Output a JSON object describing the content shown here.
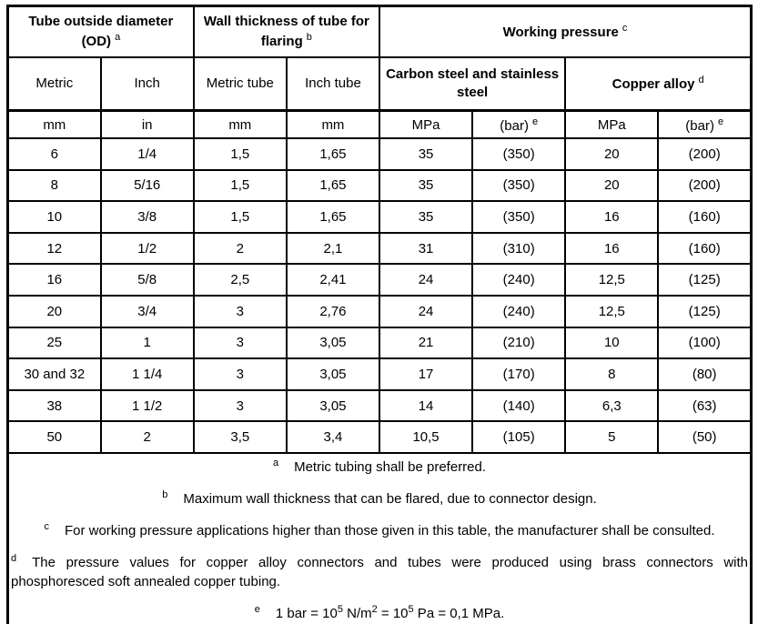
{
  "table": {
    "colors": {
      "border": "#000000",
      "text": "#000000",
      "background": "#ffffff"
    },
    "col_groups": [
      {
        "label": "Tube outside diameter (OD)",
        "sup": "a"
      },
      {
        "label": "Wall thickness of tube for flaring",
        "sup": "b"
      },
      {
        "label": "Working pressure",
        "sup": "c"
      }
    ],
    "sub_headers": [
      {
        "label": "Metric"
      },
      {
        "label": "Inch"
      },
      {
        "label": "Metric tube"
      },
      {
        "label": "Inch tube"
      },
      {
        "label": "Carbon steel and stainless steel"
      },
      {
        "label": "Copper alloy",
        "sup": "d"
      }
    ],
    "units": [
      {
        "label": "mm"
      },
      {
        "label": "in"
      },
      {
        "label": "mm"
      },
      {
        "label": "mm"
      },
      {
        "label": "MPa"
      },
      {
        "label": "(bar)",
        "sup": "e"
      },
      {
        "label": "MPa"
      },
      {
        "label": "(bar)",
        "sup": "e"
      }
    ],
    "rows": [
      [
        "6",
        "1/4",
        "1,5",
        "1,65",
        "35",
        "(350)",
        "20",
        "(200)"
      ],
      [
        "8",
        "5/16",
        "1,5",
        "1,65",
        "35",
        "(350)",
        "20",
        "(200)"
      ],
      [
        "10",
        "3/8",
        "1,5",
        "1,65",
        "35",
        "(350)",
        "16",
        "(160)"
      ],
      [
        "12",
        "1/2",
        "2",
        "2,1",
        "31",
        "(310)",
        "16",
        "(160)"
      ],
      [
        "16",
        "5/8",
        "2,5",
        "2,41",
        "24",
        "(240)",
        "12,5",
        "(125)"
      ],
      [
        "20",
        "3/4",
        "3",
        "2,76",
        "24",
        "(240)",
        "12,5",
        "(125)"
      ],
      [
        "25",
        "1",
        "3",
        "3,05",
        "21",
        "(210)",
        "10",
        "(100)"
      ],
      [
        "30 and 32",
        "1 1/4",
        "3",
        "3,05",
        "17",
        "(170)",
        "8",
        "(80)"
      ],
      [
        "38",
        "1 1/2",
        "3",
        "3,05",
        "14",
        "(140)",
        "6,3",
        "(63)"
      ],
      [
        "50",
        "2",
        "3,5",
        "3,4",
        "10,5",
        "(105)",
        "5",
        "(50)"
      ]
    ],
    "footnotes": [
      {
        "marker": "a",
        "parts": [
          {
            "t": "Metric tubing shall be preferred."
          }
        ]
      },
      {
        "marker": "b",
        "parts": [
          {
            "t": "Maximum wall thickness that can be flared, due to connector design."
          }
        ]
      },
      {
        "marker": "c",
        "parts": [
          {
            "t": "For working pressure applications higher than those given in this table, the manufacturer shall be consulted."
          }
        ]
      },
      {
        "marker": "d",
        "justify": true,
        "parts": [
          {
            "t": "The pressure values for copper alloy connectors and tubes were produced using brass connectors with phosphoresced soft annealed copper tubing."
          }
        ]
      },
      {
        "marker": "e",
        "parts": [
          {
            "t": "1 bar = 10"
          },
          {
            "sup": "5"
          },
          {
            "t": " N/m"
          },
          {
            "sup": "2"
          },
          {
            "t": " = 10"
          },
          {
            "sup": "5"
          },
          {
            "t": " Pa = 0,1 MPa."
          }
        ]
      }
    ]
  }
}
